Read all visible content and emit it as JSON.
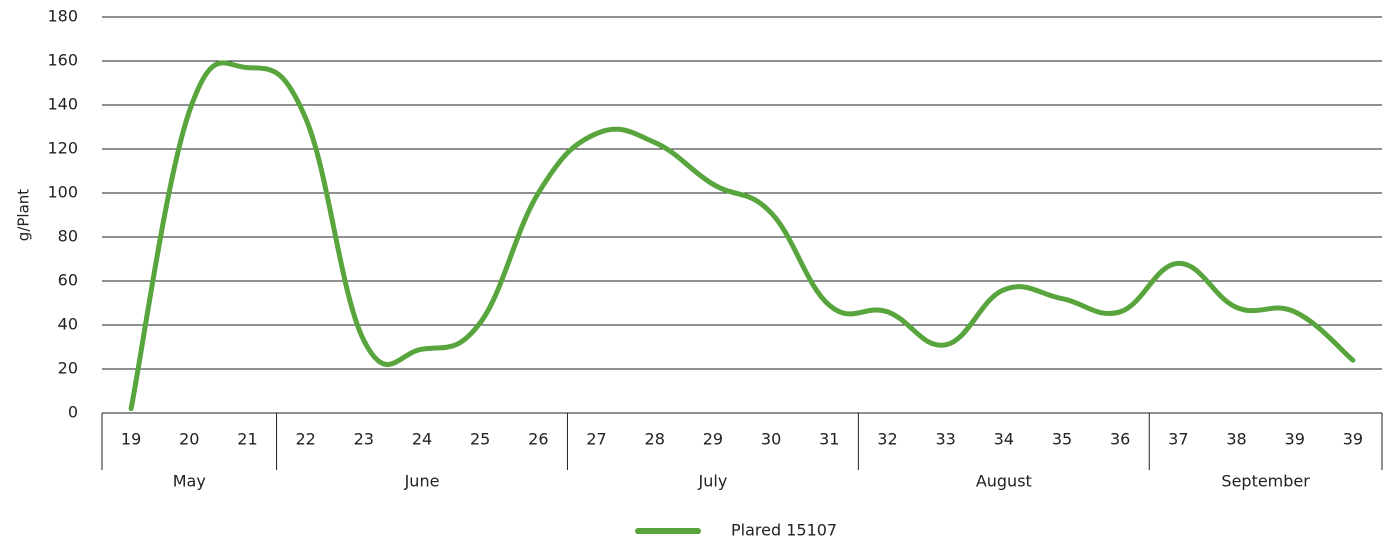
{
  "chart_data": {
    "type": "line",
    "ylabel": "g/Plant",
    "ylim": [
      0,
      180
    ],
    "yticks": [
      "0",
      "20",
      "40",
      "60",
      "80",
      "100",
      "120",
      "140",
      "160",
      "180"
    ],
    "grid": true,
    "legend_placement": "bottom-center",
    "categories": [
      "19",
      "20",
      "21",
      "22",
      "23",
      "24",
      "25",
      "26",
      "27",
      "28",
      "29",
      "30",
      "31",
      "32",
      "33",
      "34",
      "35",
      "36",
      "37",
      "38",
      "39",
      "39"
    ],
    "groups": [
      {
        "label": "May",
        "count": 3
      },
      {
        "label": "June",
        "count": 5
      },
      {
        "label": "July",
        "count": 5
      },
      {
        "label": "August",
        "count": 5
      },
      {
        "label": "September",
        "count": 4
      }
    ],
    "series": [
      {
        "name": "Plared 15107",
        "color": "#57a53c",
        "values": [
          2,
          137,
          157,
          134,
          33,
          29,
          41,
          100,
          127,
          123,
          104,
          91,
          49,
          46,
          31,
          56,
          52,
          46,
          68,
          48,
          46,
          24
        ]
      }
    ]
  }
}
